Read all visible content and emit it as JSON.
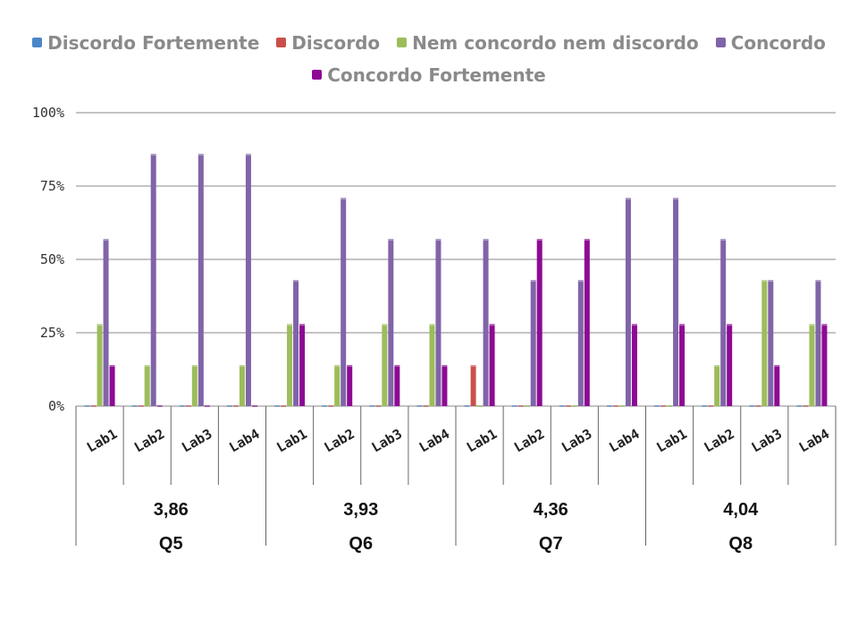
{
  "chart_data": {
    "type": "bar",
    "title": "",
    "xlabel": "",
    "ylabel": "",
    "ylim": [
      0,
      100
    ],
    "yticks": [
      "0%",
      "25%",
      "50%",
      "75%",
      "100%"
    ],
    "ytick_values": [
      0,
      25,
      50,
      75,
      100
    ],
    "grid": true,
    "legend_position": "top",
    "groups": [
      {
        "name": "Q5",
        "score": "3,86",
        "categories": [
          "Lab1",
          "Lab2",
          "Lab3",
          "Lab4"
        ]
      },
      {
        "name": "Q6",
        "score": "3,93",
        "categories": [
          "Lab1",
          "Lab2",
          "Lab3",
          "Lab4"
        ]
      },
      {
        "name": "Q7",
        "score": "4,36",
        "categories": [
          "Lab1",
          "Lab2",
          "Lab3",
          "Lab4"
        ]
      },
      {
        "name": "Q8",
        "score": "4,04",
        "categories": [
          "Lab1",
          "Lab2",
          "Lab3",
          "Lab4"
        ]
      }
    ],
    "series": [
      {
        "name": "Discordo Fortemente",
        "color": "#4a86c8",
        "values": [
          0,
          0,
          0,
          0,
          0,
          0,
          0,
          0,
          0,
          0,
          0,
          0,
          0,
          0,
          0,
          0
        ]
      },
      {
        "name": "Discordo",
        "color": "#c9504a",
        "values": [
          0,
          0,
          0,
          0,
          0,
          0,
          0,
          0,
          14,
          0,
          0,
          0,
          0,
          0,
          0,
          0
        ]
      },
      {
        "name": "Nem concordo nem discordo",
        "color": "#9cbd5a",
        "values": [
          28,
          14,
          14,
          14,
          28,
          14,
          28,
          28,
          0,
          0,
          0,
          0,
          0,
          14,
          43,
          28
        ]
      },
      {
        "name": "Concordo",
        "color": "#8064a8",
        "values": [
          57,
          86,
          86,
          86,
          43,
          71,
          57,
          57,
          57,
          43,
          43,
          71,
          71,
          57,
          43,
          43
        ]
      },
      {
        "name": "Concordo Fortemente",
        "color": "#8e0a93",
        "values": [
          14,
          0,
          0,
          0,
          28,
          14,
          14,
          14,
          28,
          57,
          57,
          28,
          28,
          28,
          14,
          28
        ]
      }
    ]
  }
}
